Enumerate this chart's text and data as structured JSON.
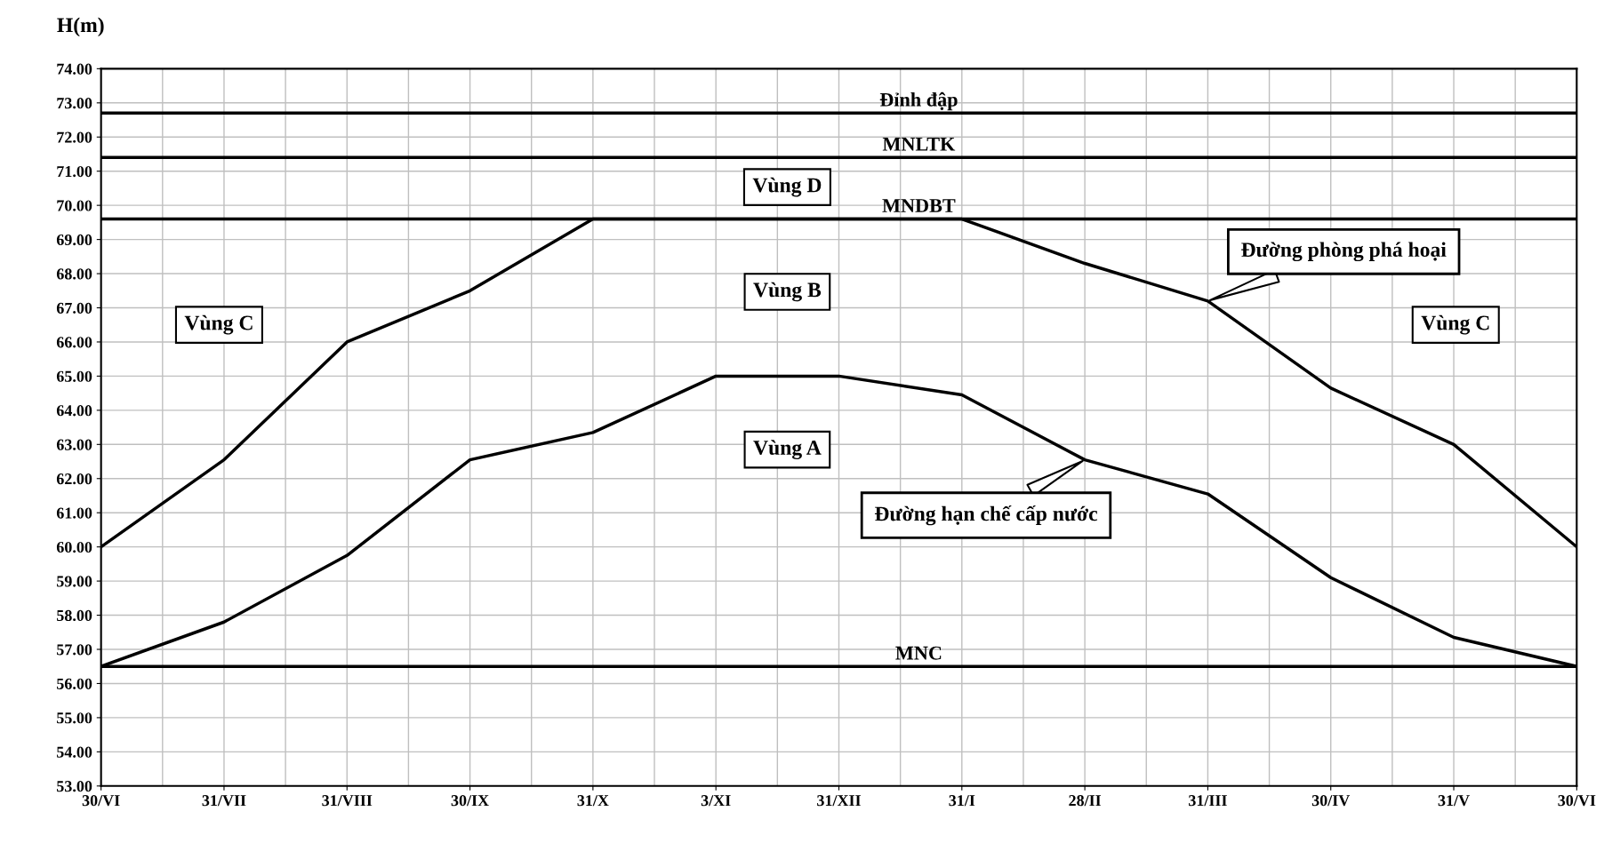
{
  "chart_data": {
    "type": "line",
    "ylabel": "H(m)",
    "categories": [
      "30/VI",
      "31/VII",
      "31/VIII",
      "30/IX",
      "31/X",
      "3/XI",
      "31/XII",
      "31/I",
      "28/II",
      "31/III",
      "30/IV",
      "31/V",
      "30/VI"
    ],
    "series": [
      {
        "name": "Đường phòng phá hoại",
        "color": "#000000",
        "values": [
          60.0,
          62.55,
          66.0,
          67.5,
          69.6,
          69.6,
          69.6,
          69.6,
          68.3,
          67.2,
          64.65,
          63.0,
          60.0
        ]
      },
      {
        "name": "Đường hạn chế cấp nước",
        "color": "#000000",
        "values": [
          56.5,
          57.8,
          59.75,
          62.55,
          63.35,
          65.0,
          65.0,
          64.45,
          62.55,
          61.55,
          59.1,
          57.35,
          56.5
        ]
      }
    ],
    "ylim": [
      53,
      74
    ],
    "yticks": [
      {
        "value": 53,
        "label": "53.00"
      },
      {
        "value": 54,
        "label": "54.00"
      },
      {
        "value": 55,
        "label": "55.00"
      },
      {
        "value": 56,
        "label": "56.00"
      },
      {
        "value": 57,
        "label": "57.00"
      },
      {
        "value": 58,
        "label": "58.00"
      },
      {
        "value": 59,
        "label": "59.00"
      },
      {
        "value": 60,
        "label": "60.00"
      },
      {
        "value": 61,
        "label": "61.00"
      },
      {
        "value": 62,
        "label": "62.00"
      },
      {
        "value": 63,
        "label": "63.00"
      },
      {
        "value": 64,
        "label": "64.00"
      },
      {
        "value": 65,
        "label": "65.00"
      },
      {
        "value": 66,
        "label": "66.00"
      },
      {
        "value": 67,
        "label": "67.00"
      },
      {
        "value": 68,
        "label": "68.00"
      },
      {
        "value": 69,
        "label": "69.00"
      },
      {
        "value": 70,
        "label": "70.00"
      },
      {
        "value": 71,
        "label": "71.00"
      },
      {
        "value": 72,
        "label": "72.00"
      },
      {
        "value": 73,
        "label": "73.00"
      },
      {
        "value": 74,
        "label": "74.00"
      }
    ],
    "ref_lines": [
      {
        "axis": "y",
        "value": 72.7,
        "label": "Đỉnh đập",
        "color": "#000000"
      },
      {
        "axis": "y",
        "value": 71.4,
        "label": "MNLTK",
        "color": "#000000"
      },
      {
        "axis": "y",
        "value": 69.6,
        "label": "MNDBT",
        "color": "#000000"
      },
      {
        "axis": "y",
        "value": 56.5,
        "label": "MNC",
        "color": "#000000"
      }
    ],
    "annotations": [
      "Vùng D",
      "Vùng B",
      "Vùng C",
      "Vùng C",
      "Vùng A"
    ],
    "grid": true,
    "marker": "none",
    "line_style": "solid"
  }
}
